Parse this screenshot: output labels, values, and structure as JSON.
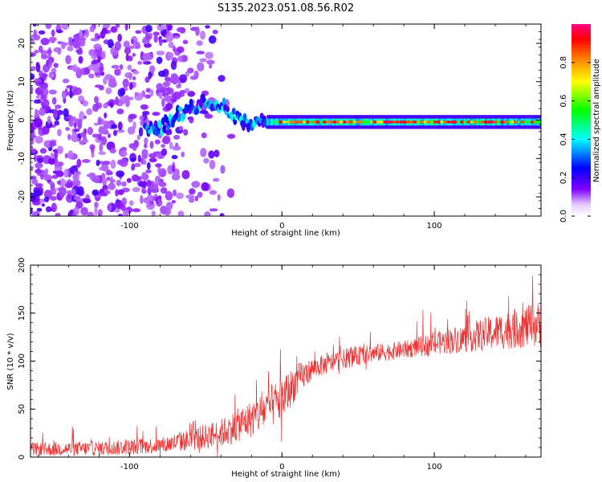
{
  "title": "S135.2023.051.08.56.R02",
  "chart_data": [
    {
      "type": "heatmap",
      "title": "",
      "xlabel": "Height of straight line (km)",
      "ylabel": "Frequency (Hz)",
      "xlim": [
        -165,
        170
      ],
      "ylim": [
        -25,
        25
      ],
      "xticks": [
        -100,
        0,
        100
      ],
      "yticks": [
        -20,
        -10,
        0,
        10,
        20
      ],
      "colorbar": {
        "label": "Normalized spectral amplitude",
        "range": [
          0.0,
          1.0
        ],
        "ticks": [
          0.0,
          0.2,
          0.4,
          0.6,
          0.8
        ],
        "colormap": [
          "#e6ccff",
          "#8000ff",
          "#0000ff",
          "#00ffff",
          "#00ff00",
          "#ffff00",
          "#ff8000",
          "#ff0000",
          "#ff0080"
        ]
      },
      "features": {
        "noise_region_x": [
          -165,
          -50
        ],
        "noise_amplitude": [
          0.05,
          0.2
        ],
        "rising_trace": [
          [
            -90,
            -3
          ],
          [
            -80,
            -2
          ],
          [
            -70,
            1
          ],
          [
            -60,
            3
          ],
          [
            -50,
            5
          ],
          [
            -40,
            4
          ],
          [
            -30,
            1
          ],
          [
            -20,
            -2
          ],
          [
            -15,
            0
          ],
          [
            -10,
            -1
          ]
        ],
        "steady_line": {
          "x": [
            -10,
            170
          ],
          "frequency": -0.5,
          "amplitude": 0.85
        }
      }
    },
    {
      "type": "line",
      "title": "",
      "xlabel": "Height of straight line (km)",
      "ylabel": "SNR (10 * v/v)",
      "xlim": [
        -165,
        170
      ],
      "ylim": [
        0,
        200
      ],
      "xticks": [
        -100,
        0,
        100
      ],
      "yticks": [
        0,
        50,
        100,
        150,
        200
      ],
      "color": "#f03030",
      "trend": {
        "x": [
          -165,
          -120,
          -80,
          -60,
          -40,
          -20,
          0,
          10,
          20,
          40,
          60,
          80,
          100,
          120,
          140,
          160,
          170
        ],
        "y": [
          8,
          9,
          12,
          18,
          25,
          40,
          60,
          80,
          92,
          102,
          108,
          112,
          118,
          124,
          130,
          136,
          138
        ]
      },
      "noise": {
        "x": [
          -165,
          -80,
          -40,
          0,
          20,
          80,
          120,
          170
        ],
        "amplitude": [
          12,
          14,
          25,
          40,
          18,
          15,
          25,
          40
        ]
      }
    }
  ]
}
